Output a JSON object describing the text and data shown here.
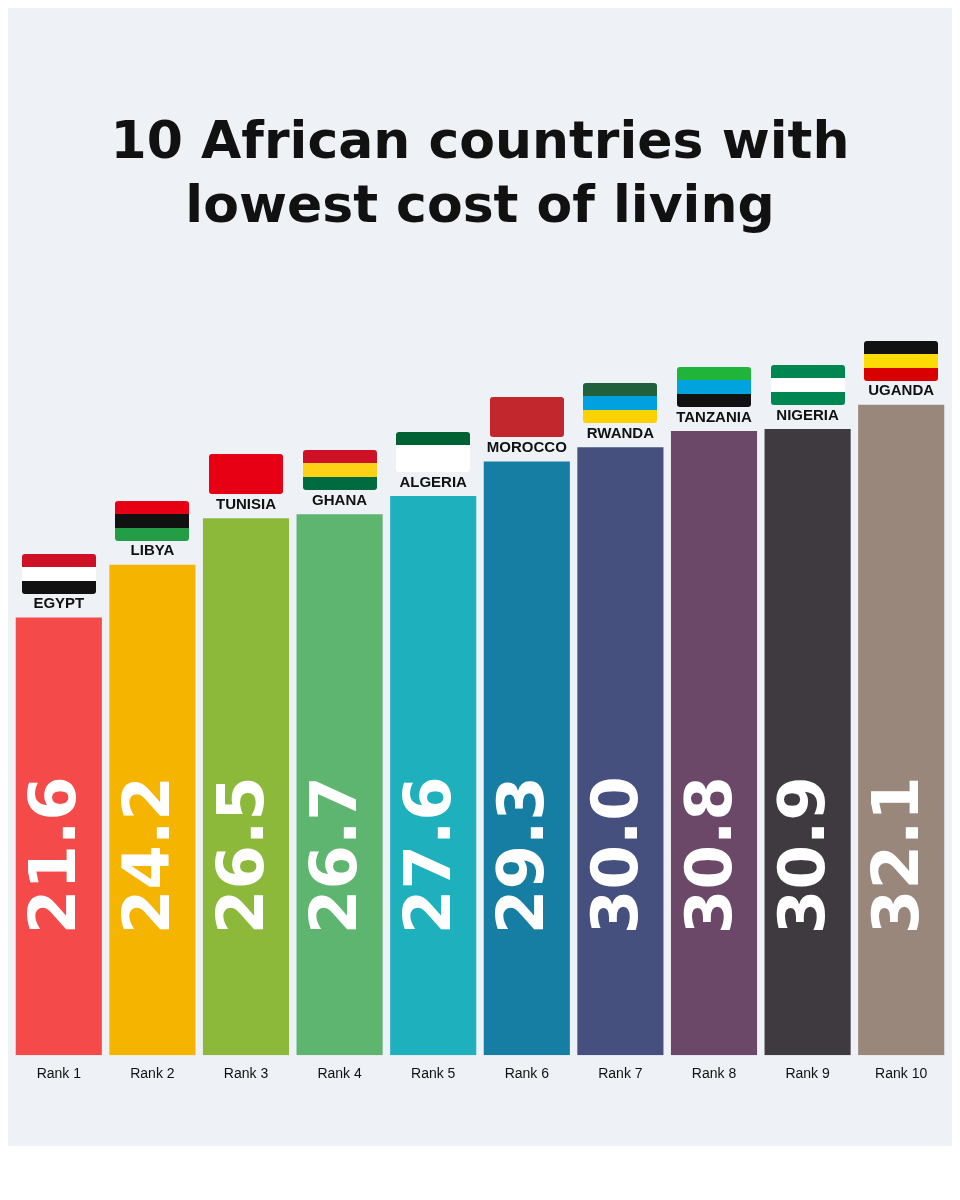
{
  "chart_data": {
    "type": "bar",
    "title": "10 African countries with lowest cost of living",
    "categories": [
      "Rank 1",
      "Rank 2",
      "Rank 3",
      "Rank 4",
      "Rank 5",
      "Rank 6",
      "Rank 7",
      "Rank 8",
      "Rank 9",
      "Rank 10"
    ],
    "values": [
      21.6,
      24.2,
      26.5,
      26.7,
      27.6,
      29.3,
      30.0,
      30.8,
      30.9,
      32.1
    ],
    "colors": [
      "#f44a4a",
      "#f5b400",
      "#8cb93a",
      "#5db56f",
      "#1fb0bd",
      "#167ea3",
      "#45507e",
      "#6c4868",
      "#3f3a3f",
      "#9a877b"
    ],
    "data_labels": true,
    "value_labels": [
      "21.6",
      "24.2",
      "26.5",
      "26.7",
      "27.6",
      "29.3",
      "30.0",
      "30.8",
      "30.9",
      "32.1"
    ],
    "annotations": [
      {
        "text": "EGYPT",
        "x": "Rank 1",
        "y": 21.6
      },
      {
        "text": "LIBYA",
        "x": "Rank 2",
        "y": 24.2
      },
      {
        "text": "TUNISIA",
        "x": "Rank 3",
        "y": 26.5
      },
      {
        "text": "GHANA",
        "x": "Rank 4",
        "y": 26.7
      },
      {
        "text": "ALGERIA",
        "x": "Rank 5",
        "y": 27.6
      },
      {
        "text": "MOROCCO",
        "x": "Rank 6",
        "y": 29.3
      },
      {
        "text": "RWANDA",
        "x": "Rank 7",
        "y": 30.0
      },
      {
        "text": "TANZANIA",
        "x": "Rank 8",
        "y": 30.8
      },
      {
        "text": "NIGERIA",
        "x": "Rank 9",
        "y": 30.9
      },
      {
        "text": "UGANDA",
        "x": "Rank 10",
        "y": 32.1
      }
    ]
  }
}
